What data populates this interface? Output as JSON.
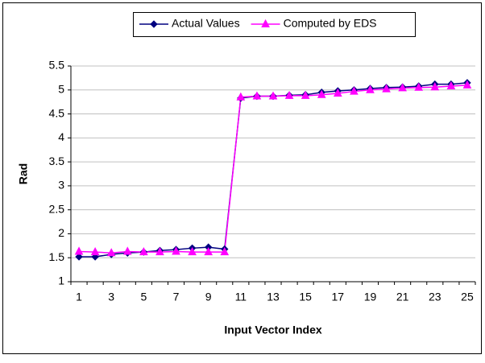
{
  "chart_data": {
    "type": "line",
    "y_label": "Rad",
    "x_label": "Input Vector Index",
    "categories": [
      "1",
      null,
      "3",
      null,
      "5",
      null,
      "7",
      null,
      "9",
      null,
      "11",
      null,
      "13",
      null,
      "15",
      null,
      "17",
      null,
      "19",
      null,
      "21",
      null,
      "23",
      null,
      "25"
    ],
    "series": [
      {
        "name": "Actual Values",
        "color": "#000080",
        "marker": "diamond",
        "values": [
          1.52,
          1.52,
          1.57,
          1.6,
          1.62,
          1.65,
          1.67,
          1.7,
          1.72,
          1.68,
          4.83,
          4.87,
          4.87,
          4.89,
          4.9,
          4.95,
          4.98,
          5.0,
          5.03,
          5.05,
          5.06,
          5.08,
          5.12,
          5.12,
          5.15
        ]
      },
      {
        "name": "Computed by EDS",
        "color": "#ff00ff",
        "marker": "triangle",
        "values": [
          1.63,
          1.62,
          1.6,
          1.63,
          1.62,
          1.62,
          1.63,
          1.62,
          1.62,
          1.62,
          4.85,
          4.87,
          4.87,
          4.88,
          4.88,
          4.9,
          4.93,
          4.97,
          5.0,
          5.02,
          5.04,
          5.05,
          5.06,
          5.08,
          5.1
        ]
      }
    ],
    "ylim": [
      1,
      5.5
    ],
    "yticks": [
      1,
      1.5,
      2,
      2.5,
      3,
      3.5,
      4,
      4.5,
      5,
      5.5
    ],
    "grid": true,
    "legend": "top"
  }
}
